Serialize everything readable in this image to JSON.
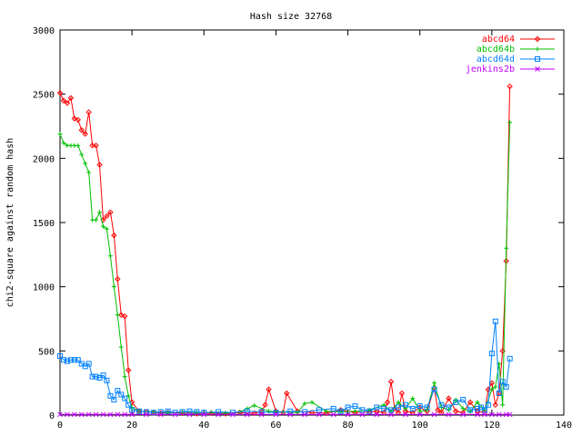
{
  "chart_data": {
    "type": "line",
    "title": "Hash size 32768",
    "xlabel": "",
    "ylabel": "chi2-square against random hash",
    "xlim": [
      0,
      140
    ],
    "ylim": [
      0,
      3000
    ],
    "xticks": [
      0,
      20,
      40,
      60,
      80,
      100,
      120,
      140
    ],
    "yticks": [
      0,
      500,
      1000,
      1500,
      2000,
      2500,
      3000
    ],
    "grid": false,
    "legend_position": "top-right",
    "series": [
      {
        "name": "abcd64",
        "color": "#ff0000",
        "marker": "diamond",
        "x": [
          0,
          1,
          2,
          3,
          4,
          5,
          6,
          7,
          8,
          9,
          10,
          11,
          12,
          13,
          14,
          15,
          16,
          17,
          18,
          19,
          20,
          22,
          24,
          26,
          28,
          30,
          34,
          38,
          42,
          46,
          50,
          54,
          56,
          57,
          58,
          60,
          62,
          63,
          66,
          70,
          74,
          78,
          82,
          86,
          88,
          90,
          91,
          92,
          93,
          94,
          95,
          96,
          98,
          100,
          102,
          104,
          105,
          106,
          108,
          110,
          112,
          114,
          116,
          118,
          119,
          120,
          121,
          122,
          123,
          124,
          125
        ],
        "y": [
          2510,
          2450,
          2430,
          2470,
          2310,
          2300,
          2220,
          2190,
          2360,
          2100,
          2100,
          1950,
          1520,
          1550,
          1580,
          1400,
          1060,
          780,
          770,
          350,
          100,
          30,
          25,
          20,
          15,
          20,
          15,
          10,
          15,
          10,
          20,
          15,
          30,
          80,
          200,
          30,
          20,
          170,
          30,
          20,
          15,
          40,
          20,
          25,
          30,
          20,
          100,
          260,
          50,
          20,
          170,
          30,
          20,
          60,
          30,
          210,
          40,
          20,
          130,
          30,
          20,
          100,
          30,
          20,
          200,
          250,
          80,
          170,
          500,
          1200,
          2560
        ]
      },
      {
        "name": "abcd64b",
        "color": "#00c000",
        "marker": "plus",
        "x": [
          0,
          1,
          2,
          3,
          4,
          5,
          6,
          7,
          8,
          9,
          10,
          11,
          12,
          13,
          14,
          15,
          16,
          17,
          18,
          19,
          20,
          22,
          26,
          30,
          34,
          38,
          42,
          46,
          50,
          52,
          54,
          58,
          62,
          66,
          68,
          70,
          74,
          78,
          82,
          86,
          90,
          92,
          94,
          96,
          98,
          100,
          102,
          104,
          106,
          108,
          110,
          112,
          114,
          116,
          118,
          120,
          121,
          122,
          123,
          124,
          125
        ],
        "y": [
          2190,
          2120,
          2100,
          2100,
          2100,
          2100,
          2030,
          1960,
          1890,
          1520,
          1520,
          1580,
          1470,
          1450,
          1240,
          1000,
          780,
          530,
          300,
          150,
          60,
          30,
          25,
          20,
          25,
          20,
          20,
          15,
          25,
          50,
          75,
          30,
          25,
          20,
          90,
          100,
          30,
          25,
          30,
          40,
          80,
          30,
          100,
          50,
          130,
          30,
          40,
          250,
          60,
          40,
          120,
          50,
          30,
          100,
          40,
          200,
          220,
          400,
          80,
          1300,
          2280
        ]
      },
      {
        "name": "abcd64d",
        "color": "#0080ff",
        "marker": "square",
        "x": [
          0,
          1,
          2,
          3,
          4,
          5,
          6,
          7,
          8,
          9,
          10,
          11,
          12,
          13,
          14,
          15,
          16,
          17,
          18,
          19,
          20,
          22,
          24,
          26,
          28,
          30,
          32,
          34,
          36,
          38,
          40,
          44,
          48,
          52,
          56,
          60,
          64,
          68,
          72,
          76,
          78,
          80,
          82,
          84,
          86,
          88,
          90,
          92,
          94,
          96,
          98,
          100,
          102,
          104,
          106,
          108,
          110,
          112,
          114,
          116,
          117,
          118,
          119,
          120,
          121,
          122,
          123,
          124,
          125
        ],
        "y": [
          460,
          430,
          420,
          430,
          430,
          430,
          400,
          380,
          400,
          300,
          300,
          290,
          310,
          270,
          150,
          120,
          190,
          160,
          130,
          80,
          40,
          30,
          25,
          20,
          25,
          30,
          20,
          25,
          30,
          25,
          20,
          25,
          20,
          30,
          25,
          20,
          30,
          25,
          40,
          50,
          30,
          60,
          70,
          40,
          30,
          60,
          50,
          40,
          60,
          80,
          50,
          70,
          60,
          200,
          80,
          60,
          100,
          120,
          40,
          50,
          60,
          40,
          80,
          480,
          730,
          170,
          260,
          220,
          440
        ]
      },
      {
        "name": "jenkins2b",
        "color": "#c000ff",
        "marker": "cross",
        "x": [
          0,
          2,
          4,
          6,
          8,
          10,
          12,
          14,
          16,
          18,
          20,
          24,
          28,
          32,
          36,
          40,
          44,
          48,
          52,
          56,
          60,
          64,
          68,
          72,
          76,
          80,
          84,
          88,
          92,
          96,
          100,
          104,
          108,
          112,
          116,
          118,
          120,
          122,
          124,
          125
        ],
        "y": [
          5,
          5,
          5,
          5,
          5,
          5,
          5,
          5,
          5,
          5,
          5,
          5,
          5,
          5,
          5,
          5,
          5,
          5,
          5,
          5,
          5,
          5,
          5,
          5,
          5,
          5,
          5,
          5,
          5,
          5,
          5,
          5,
          5,
          5,
          5,
          5,
          5,
          5,
          5,
          5
        ]
      }
    ]
  }
}
